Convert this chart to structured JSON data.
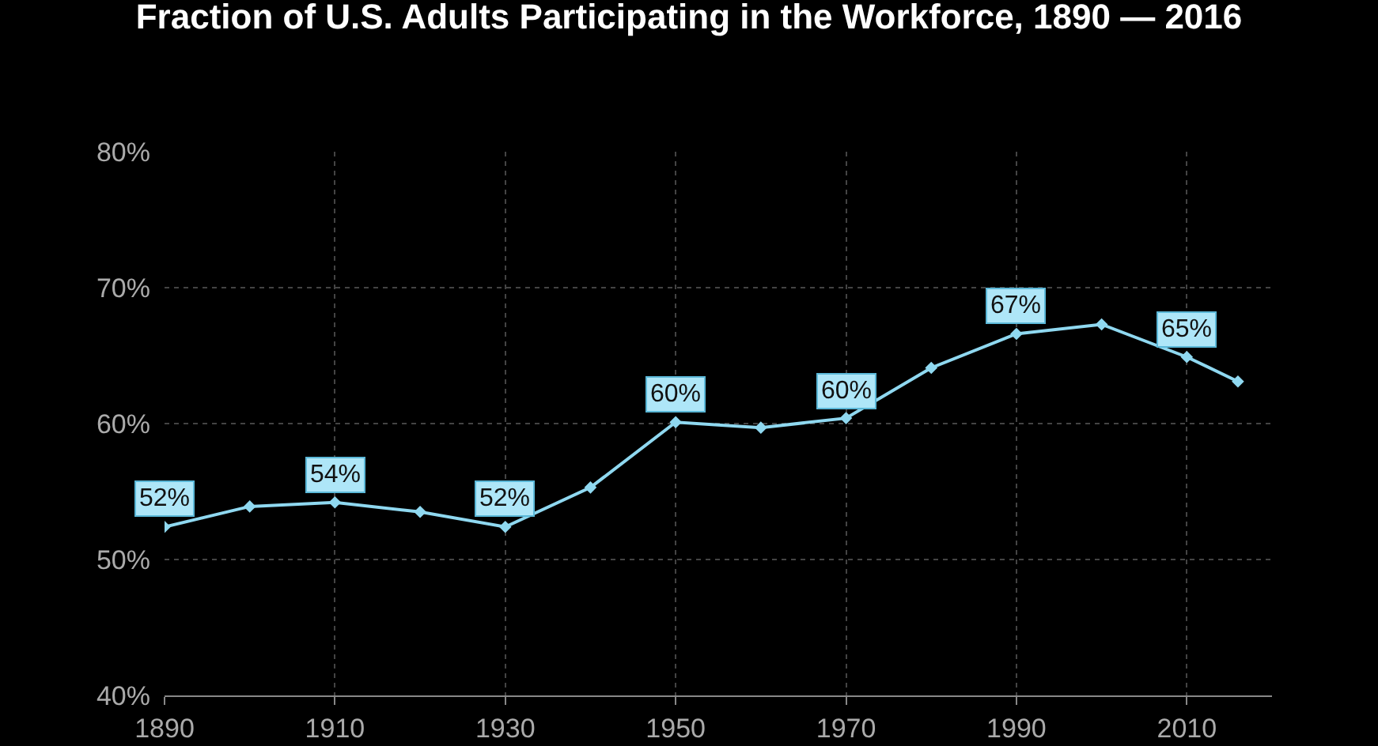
{
  "chart_data": {
    "type": "line",
    "title": "Fraction of U.S. Adults Participating in the Workforce, 1890 — 2016",
    "x": [
      1890,
      1900,
      1910,
      1920,
      1930,
      1940,
      1950,
      1960,
      1970,
      1980,
      1990,
      2000,
      2010,
      2016
    ],
    "values": [
      52.4,
      53.9,
      54.2,
      53.5,
      52.4,
      55.3,
      60.1,
      59.7,
      60.4,
      64.1,
      66.6,
      67.3,
      64.9,
      63.1
    ],
    "value_labels": [
      "52%",
      null,
      "54%",
      null,
      "52%",
      null,
      "60%",
      null,
      "60%",
      null,
      "67%",
      null,
      "65%",
      null
    ],
    "color": "#8fd8f0",
    "marker": "diamond",
    "line_style": "solid",
    "xlim": [
      1890,
      2020
    ],
    "xticks": [
      1890,
      1910,
      1930,
      1950,
      1970,
      1990,
      2010
    ],
    "ylim": [
      40,
      80
    ],
    "yticks": [
      {
        "value": 40,
        "label": "40%"
      },
      {
        "value": 50,
        "label": "50%"
      },
      {
        "value": 60,
        "label": "60%"
      },
      {
        "value": 70,
        "label": "70%"
      },
      {
        "value": 80,
        "label": "80%"
      }
    ],
    "grid": true
  }
}
